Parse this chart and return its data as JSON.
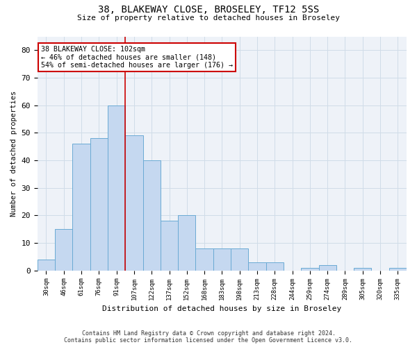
{
  "title_line1": "38, BLAKEWAY CLOSE, BROSELEY, TF12 5SS",
  "title_line2": "Size of property relative to detached houses in Broseley",
  "xlabel": "Distribution of detached houses by size in Broseley",
  "ylabel": "Number of detached properties",
  "bar_labels": [
    "30sqm",
    "46sqm",
    "61sqm",
    "76sqm",
    "91sqm",
    "107sqm",
    "122sqm",
    "137sqm",
    "152sqm",
    "168sqm",
    "183sqm",
    "198sqm",
    "213sqm",
    "228sqm",
    "244sqm",
    "259sqm",
    "274sqm",
    "289sqm",
    "305sqm",
    "320sqm",
    "335sqm"
  ],
  "bar_heights": [
    4,
    15,
    46,
    48,
    60,
    49,
    40,
    18,
    20,
    8,
    8,
    8,
    3,
    3,
    0,
    1,
    2,
    0,
    1,
    0,
    1
  ],
  "bar_color": "#c5d8f0",
  "bar_edge_color": "#6aaad4",
  "ylim": [
    0,
    85
  ],
  "yticks": [
    0,
    10,
    20,
    30,
    40,
    50,
    60,
    70,
    80
  ],
  "grid_color": "#d0dce8",
  "property_label": "38 BLAKEWAY CLOSE: 102sqm",
  "annotation_line1": "← 46% of detached houses are smaller (148)",
  "annotation_line2": "54% of semi-detached houses are larger (176) →",
  "vline_color": "#cc0000",
  "annotation_box_color": "#ffffff",
  "annotation_box_edge_color": "#cc0000",
  "footer_line1": "Contains HM Land Registry data © Crown copyright and database right 2024.",
  "footer_line2": "Contains public sector information licensed under the Open Government Licence v3.0.",
  "bg_color": "#eef2f8",
  "fig_bg_color": "#ffffff"
}
